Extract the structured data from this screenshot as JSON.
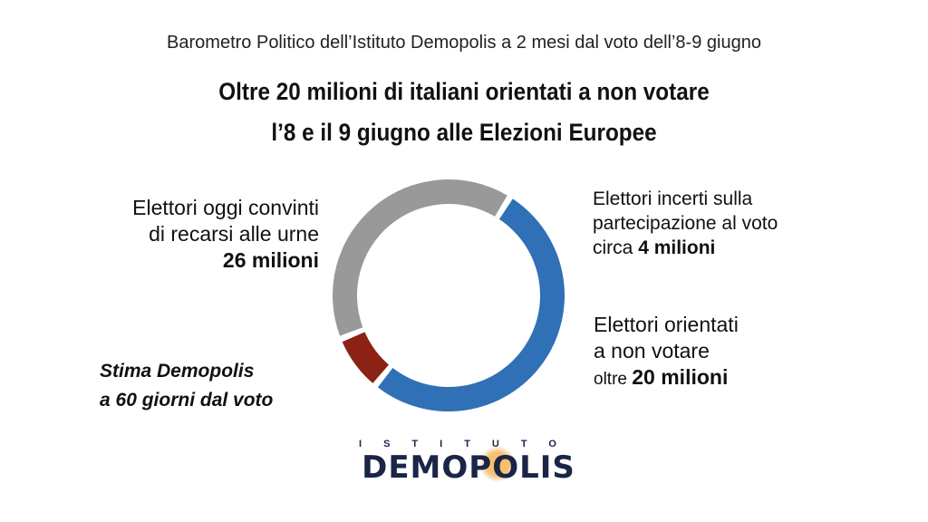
{
  "header": {
    "subtitle": "Barometro Politico dell’Istituto Demopolis a 2 mesi dal voto dell’8-9 giugno",
    "title_line1": "Oltre 20 milioni di italiani orientati a non votare",
    "title_line2": "l’8 e il 9 giugno alle Elezioni Europee"
  },
  "labels": {
    "left_line1": "Elettori oggi convinti",
    "left_line2": "di recarsi alle urne",
    "left_value": "26 milioni",
    "topright_line1": "Elettori incerti sulla",
    "topright_line2": "partecipazione al voto",
    "topright_prefix": "circa ",
    "topright_value": "4 milioni",
    "bottomright_line1": "Elettori orientati",
    "bottomright_line2": "a non votare",
    "bottomright_prefix": "oltre ",
    "bottomright_value": "20 milioni"
  },
  "note": {
    "line1": "Stima Demopolis",
    "line2": "a 60 giorni dal voto"
  },
  "logo": {
    "top_text": "ISTITUTO",
    "main_text": "DEMOPOLIS"
  },
  "chart_data": {
    "type": "pie",
    "style": "donut",
    "units": "milioni",
    "slices": [
      {
        "label": "Elettori oggi convinti di recarsi alle urne",
        "value": 26,
        "color": "#3070b6"
      },
      {
        "label": "Elettori incerti sulla partecipazione al voto",
        "value": 4,
        "color": "#8c2216"
      },
      {
        "label": "Elettori orientati a non votare",
        "value": 20,
        "color": "#999999"
      }
    ]
  }
}
